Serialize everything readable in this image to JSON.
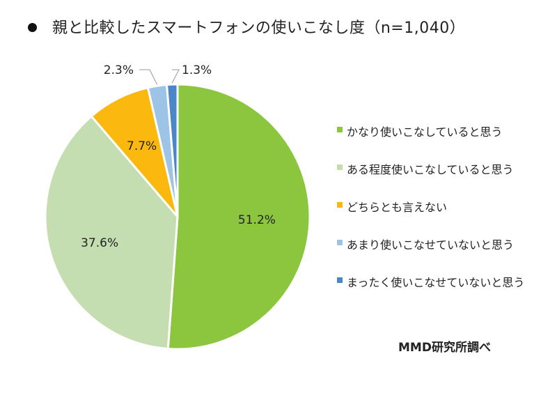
{
  "chart_data": {
    "type": "pie",
    "title": "親と比較したスマートフォンの使いこなし度（n=1,040）",
    "categories": [
      "かなり使いこなしていると思う",
      "ある程度使いこなしていると思う",
      "どちらとも言えない",
      "あまり使いこなせていないと思う",
      "まったく使いこなせていないと思う"
    ],
    "values": [
      51.2,
      37.6,
      7.7,
      2.3,
      1.3
    ],
    "labels": [
      "51.2%",
      "37.6%",
      "7.7%",
      "2.3%",
      "1.3%"
    ],
    "colors": [
      "#8CC63F",
      "#C5DEB1",
      "#FBB80F",
      "#9DC3E6",
      "#4A86C8"
    ],
    "legend_position": "right",
    "source": "MMD研究所調べ"
  }
}
